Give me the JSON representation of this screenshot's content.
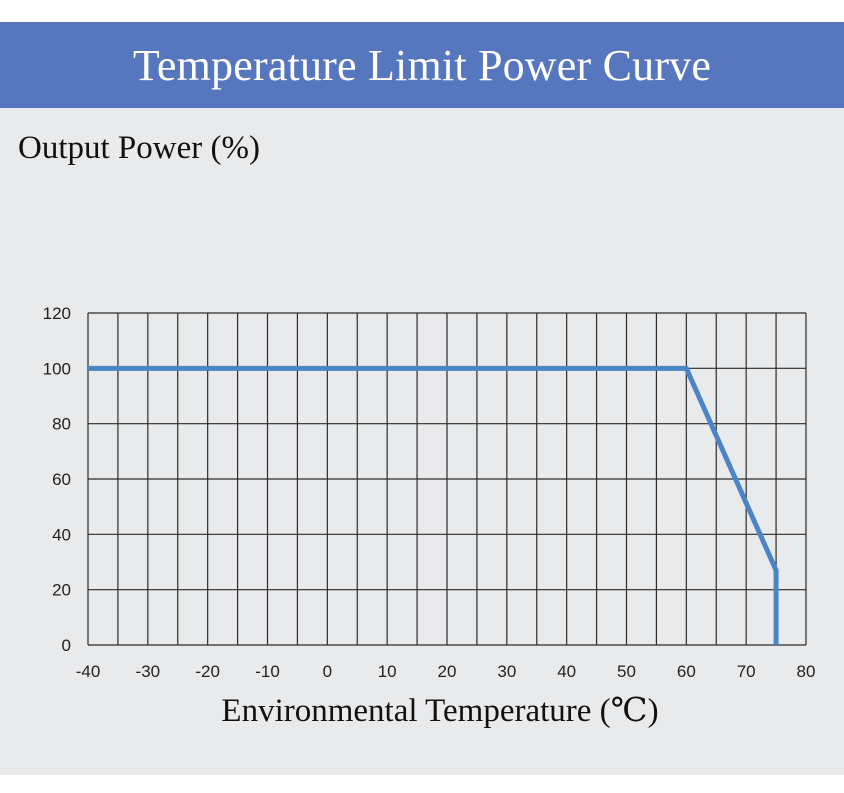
{
  "header": {
    "title": "Temperature Limit Power Curve"
  },
  "colors": {
    "title_bar": "#5676bd",
    "panel_background": "#e9eaec",
    "grid": "#2b2b2b",
    "series_line": "#4a86c6"
  },
  "chart_data": {
    "type": "line",
    "title": "Temperature Limit Power Curve",
    "ylabel": "Output Power (%)",
    "xlabel": "Environmental Temperature (℃)",
    "xlim": [
      -40,
      80
    ],
    "ylim": [
      0,
      120
    ],
    "x_ticks": [
      -40,
      -30,
      -20,
      -10,
      0,
      10,
      20,
      30,
      40,
      50,
      60,
      70,
      80
    ],
    "y_ticks": [
      0,
      20,
      40,
      60,
      80,
      100,
      120
    ],
    "x_tick_labels": [
      "-40",
      "-30",
      "-20",
      "-10",
      "0",
      "10",
      "20",
      "30",
      "40",
      "50",
      "60",
      "70",
      "80"
    ],
    "y_tick_labels": [
      "0",
      "20",
      "40",
      "60",
      "80",
      "100",
      "120"
    ],
    "grid": true,
    "grid_x_step": 5,
    "grid_y_step": 20,
    "series": [
      {
        "x": [
          -40,
          60,
          75,
          75
        ],
        "y": [
          100,
          100,
          27,
          0
        ]
      }
    ]
  }
}
